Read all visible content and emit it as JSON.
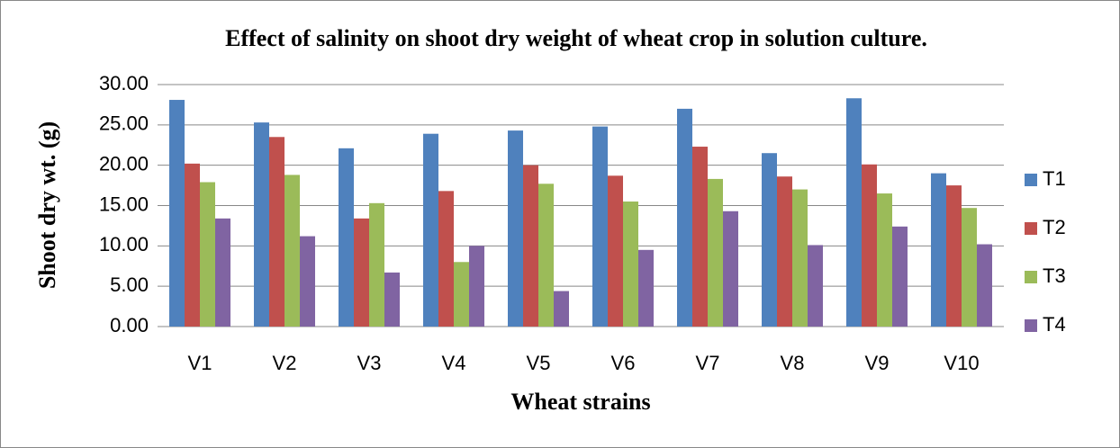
{
  "chart_data": {
    "type": "bar",
    "title": "Effect of salinity on shoot dry weight of wheat crop in solution culture.",
    "x_label": "Wheat strains",
    "y_label": "Shoot dry wt. (g)",
    "categories": [
      "V1",
      "V2",
      "V3",
      "V4",
      "V5",
      "V6",
      "V7",
      "V8",
      "V9",
      "V10"
    ],
    "series": [
      {
        "name": "T1",
        "color": "#4f81bd",
        "values": [
          28.1,
          25.3,
          22.1,
          23.9,
          24.3,
          24.8,
          27.0,
          21.5,
          28.3,
          19.0
        ]
      },
      {
        "name": "T2",
        "color": "#c0504d",
        "values": [
          20.2,
          23.5,
          13.4,
          16.8,
          20.0,
          18.7,
          22.3,
          18.6,
          20.1,
          17.5
        ]
      },
      {
        "name": "T3",
        "color": "#9bbb59",
        "values": [
          17.9,
          18.8,
          15.3,
          8.0,
          17.7,
          15.5,
          18.3,
          17.0,
          16.5,
          14.7
        ]
      },
      {
        "name": "T4",
        "color": "#8064a2",
        "values": [
          13.4,
          11.2,
          6.7,
          10.0,
          4.4,
          9.5,
          14.3,
          10.1,
          12.4,
          10.2
        ]
      }
    ],
    "ylim": [
      0,
      30
    ],
    "yticks": [
      {
        "value": 0,
        "label": "0.00"
      },
      {
        "value": 5,
        "label": "5.00"
      },
      {
        "value": 10,
        "label": "10.00"
      },
      {
        "value": 15,
        "label": "15.00"
      },
      {
        "value": 20,
        "label": "20.00"
      },
      {
        "value": 25,
        "label": "25.00"
      },
      {
        "value": 30,
        "label": "30.00"
      }
    ],
    "grid": true,
    "legend": "right"
  }
}
